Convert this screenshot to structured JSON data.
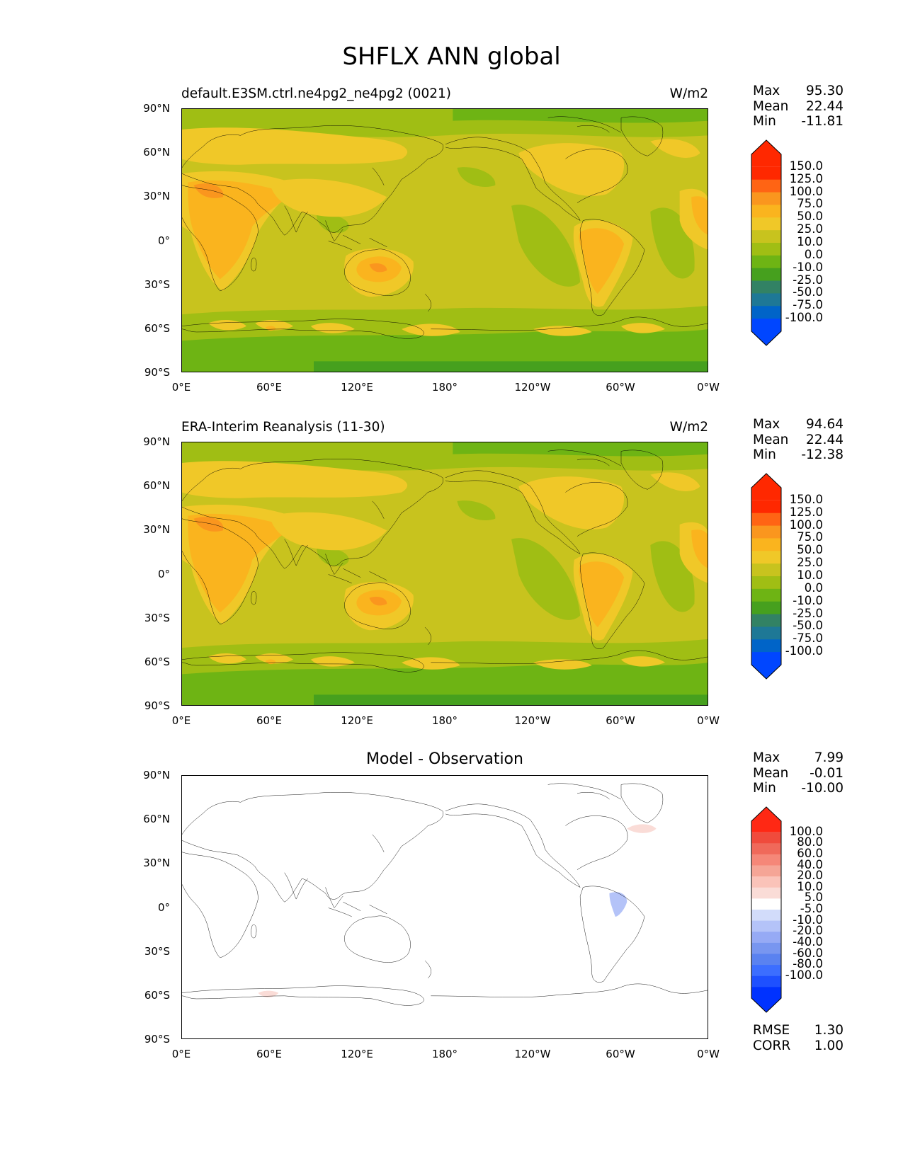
{
  "figure": {
    "title": "SHFLX ANN global",
    "lat_ticks": [
      "90°N",
      "60°N",
      "30°N",
      "0°",
      "30°S",
      "60°S",
      "90°S"
    ],
    "lon_ticks": [
      "0°E",
      "60°E",
      "120°E",
      "180°",
      "120°W",
      "60°W",
      "0°W"
    ]
  },
  "panels": [
    {
      "label": "default.E3SM.ctrl.ne4pg2_ne4pg2 (0021)",
      "units": "W/m2",
      "stats": [
        {
          "name": "Max",
          "value": "95.30"
        },
        {
          "name": "Mean",
          "value": "22.44"
        },
        {
          "name": "Min",
          "value": "-11.81"
        }
      ],
      "colorbar_levels": [
        "150.0",
        "125.0",
        "100.0",
        "75.0",
        "50.0",
        "25.0",
        "10.0",
        "0.0",
        "-10.0",
        "-25.0",
        "-50.0",
        "-75.0",
        "-100.0"
      ]
    },
    {
      "label": "ERA-Interim Reanalysis (11-30)",
      "units": "W/m2",
      "stats": [
        {
          "name": "Max",
          "value": "94.64"
        },
        {
          "name": "Mean",
          "value": "22.44"
        },
        {
          "name": "Min",
          "value": "-12.38"
        }
      ],
      "colorbar_levels": [
        "150.0",
        "125.0",
        "100.0",
        "75.0",
        "50.0",
        "25.0",
        "10.0",
        "0.0",
        "-10.0",
        "-25.0",
        "-50.0",
        "-75.0",
        "-100.0"
      ]
    },
    {
      "label": "Model - Observation",
      "units": "",
      "stats": [
        {
          "name": "Max",
          "value": "7.99"
        },
        {
          "name": "Mean",
          "value": "-0.01"
        },
        {
          "name": "Min",
          "value": "-10.00"
        }
      ],
      "colorbar_levels": [
        "100.0",
        "80.0",
        "60.0",
        "40.0",
        "20.0",
        "10.0",
        "5.0",
        "-5.0",
        "-10.0",
        "-20.0",
        "-40.0",
        "-60.0",
        "-80.0",
        "-100.0"
      ],
      "extra_stats": [
        {
          "name": "RMSE",
          "value": "1.30"
        },
        {
          "name": "CORR",
          "value": "1.00"
        }
      ]
    }
  ],
  "colors": {
    "field_scale": [
      "#0046ff",
      "#0064c8",
      "#1e7896",
      "#328264",
      "#46a01e",
      "#6eb414",
      "#a0be14",
      "#c8c31e",
      "#f0c828",
      "#fab41e",
      "#fa961e",
      "#ff6414",
      "#ff2800",
      "#ff2800"
    ],
    "diff_scale": [
      "#0032ff",
      "#1e50ff",
      "#3c6eff",
      "#5a82f0",
      "#7896f0",
      "#96aaf5",
      "#b4c3f8",
      "#d2dcfa",
      "#ffffff",
      "#fadcd7",
      "#fac3b9",
      "#f5a596",
      "#f58778",
      "#f0695a",
      "#f04b3c",
      "#ff2814"
    ]
  }
}
